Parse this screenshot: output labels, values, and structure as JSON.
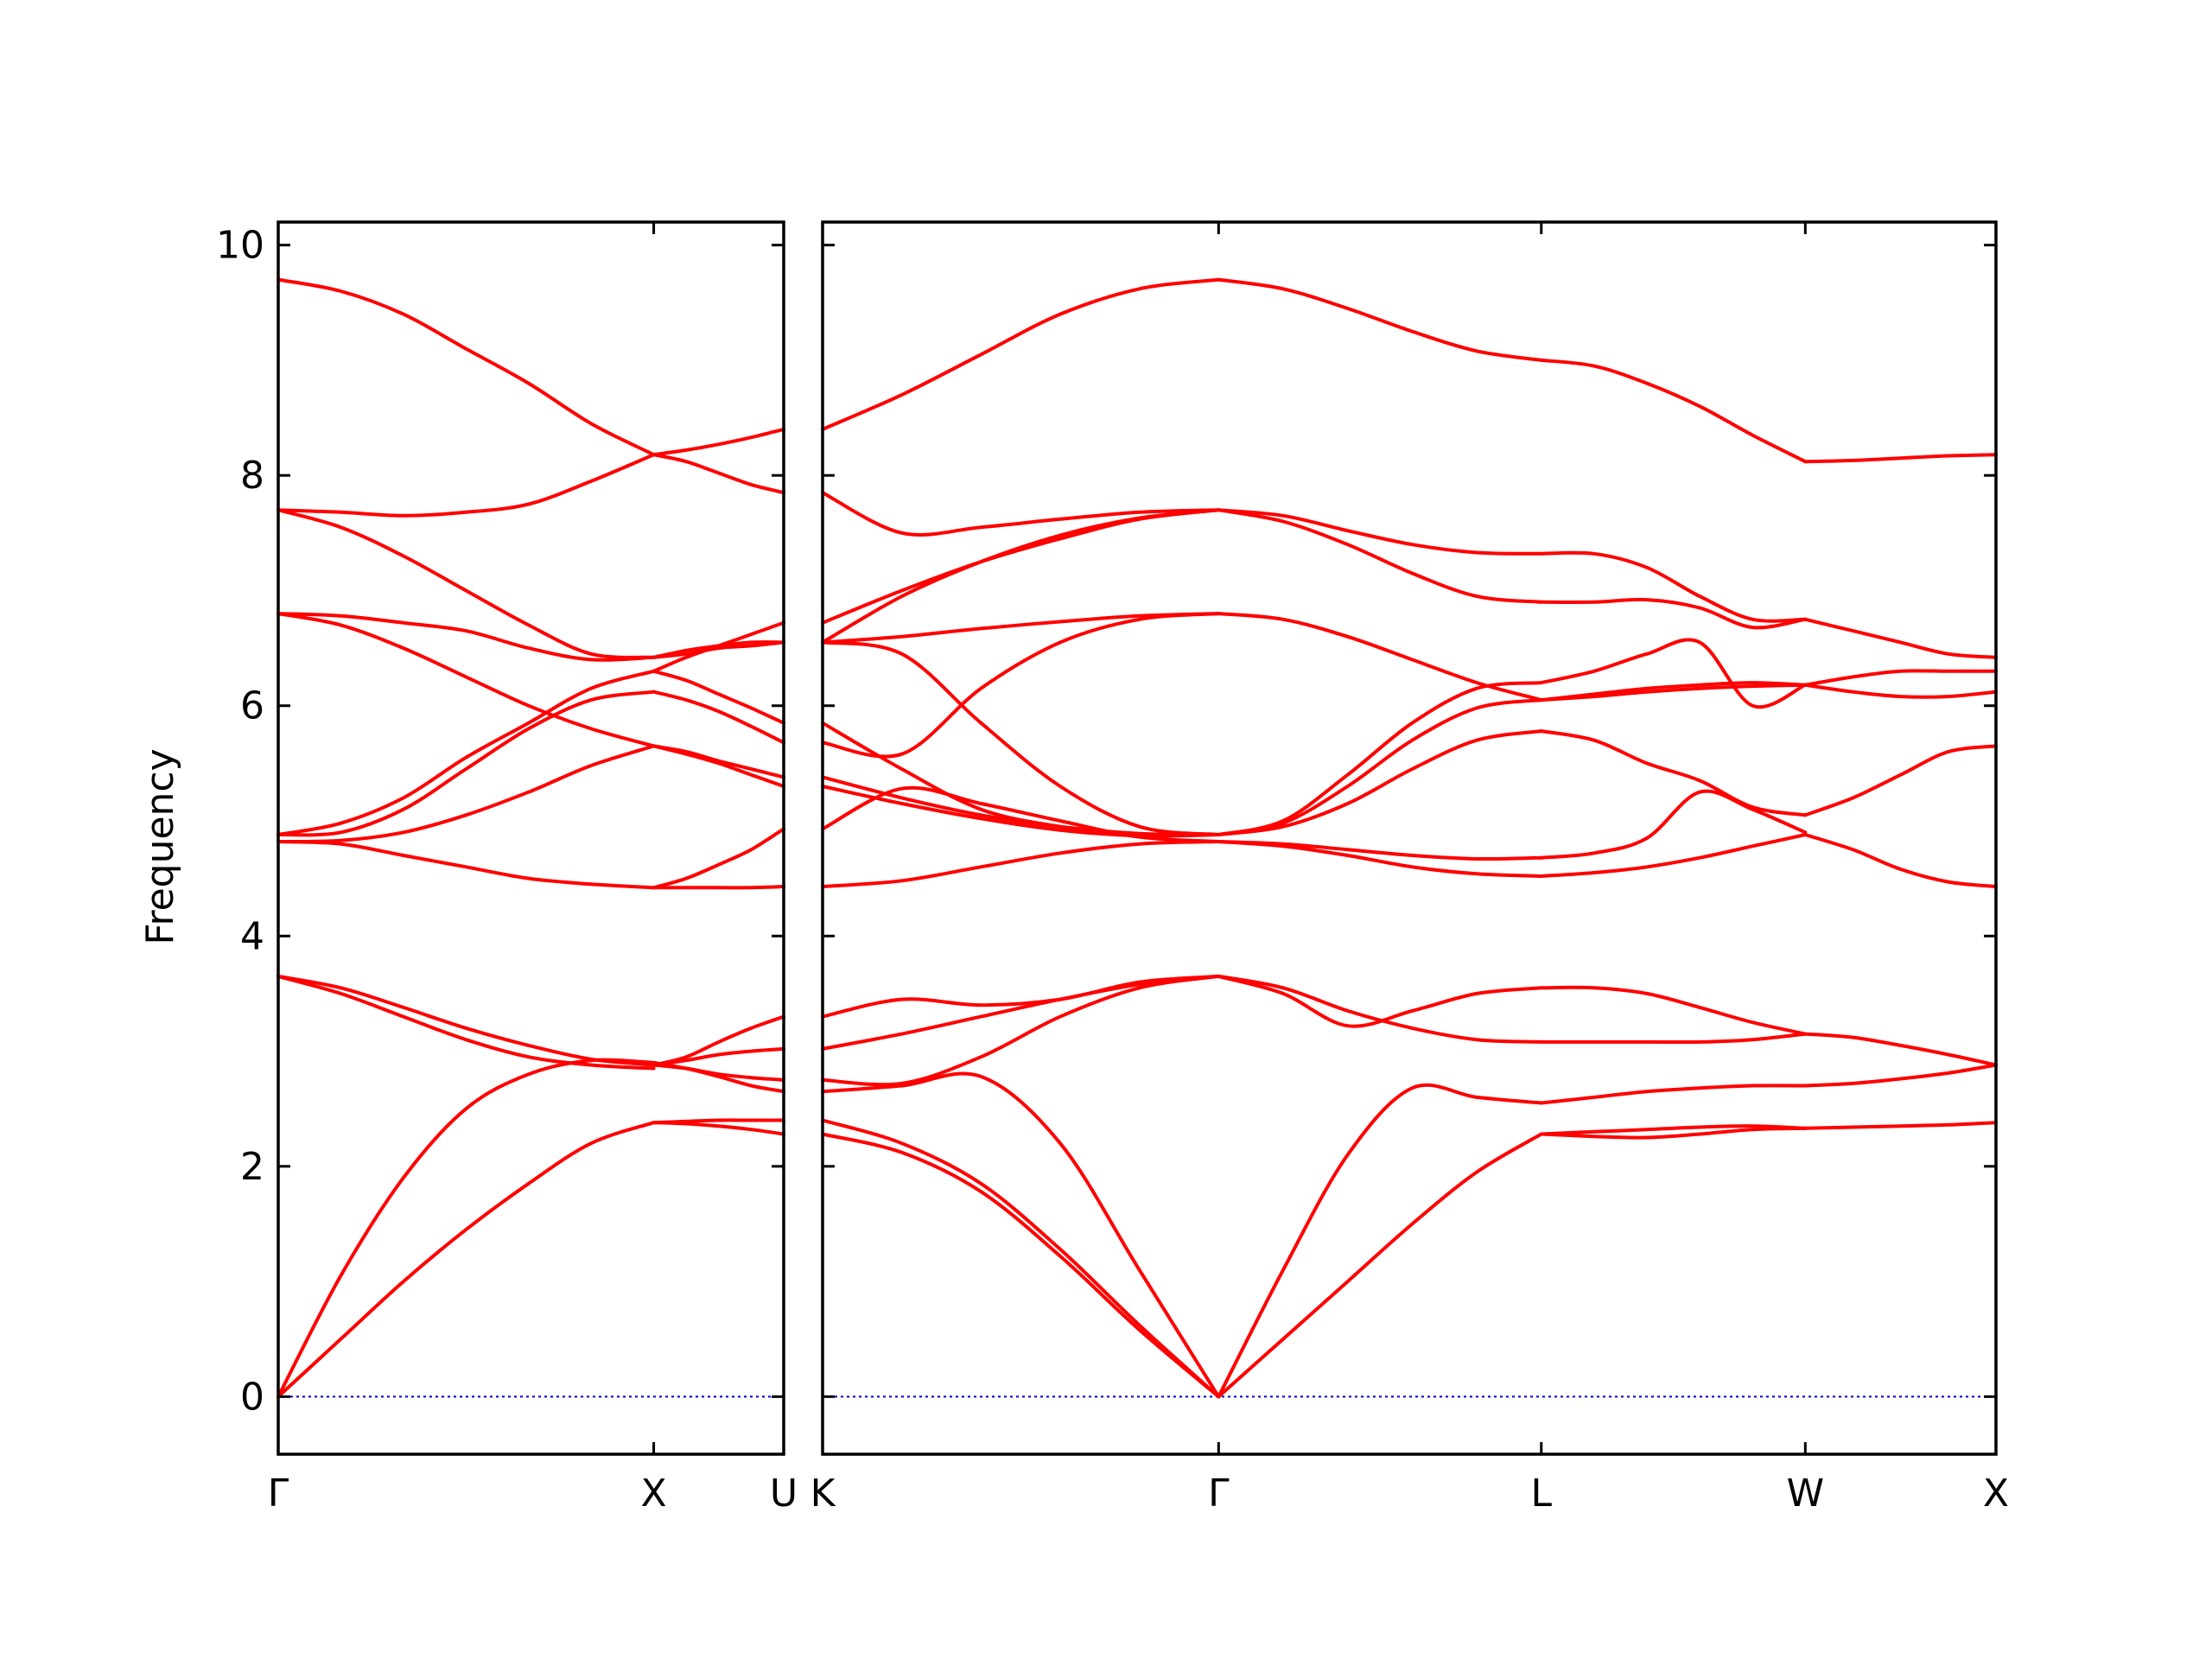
{
  "chart_data": {
    "type": "line",
    "title": "",
    "ylabel": "Frequency",
    "ylim": [
      -0.5,
      10.2
    ],
    "yticks": [
      0,
      2,
      4,
      6,
      8,
      10
    ],
    "line_color": "#ff0000",
    "zero_line_color": "#0000cc",
    "panels": [
      {
        "name": "left",
        "x_range": [
          0,
          1.75
        ],
        "ticks": [
          {
            "x": 0,
            "label": "Γ"
          },
          {
            "x": 1.3,
            "label": "X"
          },
          {
            "x": 1.75,
            "label": "U"
          }
        ],
        "segments": [
          {
            "x": [
              0,
              1.3
            ],
            "bands": [
              [
                0,
                0.5,
                1.0,
                1.45,
                1.85,
                2.2,
                2.38
              ],
              [
                0,
                1.05,
                1.9,
                2.5,
                2.8,
                2.92,
                2.9
              ],
              [
                3.65,
                3.5,
                3.3,
                3.1,
                2.95,
                2.88,
                2.85
              ],
              [
                3.65,
                3.55,
                3.38,
                3.2,
                3.05,
                2.93,
                2.88
              ],
              [
                4.82,
                4.8,
                4.7,
                4.6,
                4.5,
                4.45,
                4.42
              ],
              [
                4.82,
                4.83,
                4.9,
                5.05,
                5.25,
                5.48,
                5.65
              ],
              [
                4.88,
                4.9,
                5.1,
                5.45,
                5.8,
                6.05,
                6.12
              ],
              [
                4.88,
                4.98,
                5.2,
                5.55,
                5.85,
                6.15,
                6.3
              ],
              [
                6.8,
                6.7,
                6.5,
                6.25,
                6.0,
                5.8,
                5.65
              ],
              [
                6.8,
                6.78,
                6.72,
                6.65,
                6.5,
                6.4,
                6.42
              ],
              [
                7.7,
                7.55,
                7.3,
                7.0,
                6.7,
                6.45,
                6.42
              ],
              [
                7.7,
                7.68,
                7.65,
                7.68,
                7.75,
                7.95,
                8.18
              ],
              [
                9.7,
                9.6,
                9.4,
                9.1,
                8.8,
                8.45,
                8.18
              ]
            ]
          },
          {
            "x": [
              1.3,
              1.75
            ],
            "bands": [
              [
                2.38,
                2.37,
                2.35,
                2.32,
                2.28
              ],
              [
                2.38,
                2.39,
                2.4,
                2.4,
                2.4
              ],
              [
                2.9,
                2.85,
                2.78,
                2.7,
                2.65
              ],
              [
                2.88,
                2.85,
                2.8,
                2.77,
                2.75
              ],
              [
                2.88,
                2.92,
                2.97,
                3.0,
                3.02
              ],
              [
                2.88,
                2.95,
                3.08,
                3.2,
                3.3
              ],
              [
                4.42,
                4.42,
                4.42,
                4.42,
                4.43
              ],
              [
                4.42,
                4.5,
                4.62,
                4.75,
                4.93
              ],
              [
                5.65,
                5.58,
                5.5,
                5.4,
                5.3
              ],
              [
                5.65,
                5.6,
                5.52,
                5.45,
                5.38
              ],
              [
                6.12,
                6.05,
                5.95,
                5.82,
                5.68
              ],
              [
                6.3,
                6.22,
                6.1,
                5.98,
                5.85
              ],
              [
                6.42,
                6.45,
                6.5,
                6.52,
                6.55
              ],
              [
                6.42,
                6.48,
                6.52,
                6.55,
                6.55
              ],
              [
                6.3,
                6.42,
                6.52,
                6.62,
                6.72
              ],
              [
                8.18,
                8.12,
                8.02,
                7.92,
                7.85
              ],
              [
                8.18,
                8.22,
                8.27,
                8.33,
                8.4
              ]
            ]
          }
        ]
      },
      {
        "name": "right",
        "x_range": [
          0,
          4.0
        ],
        "ticks": [
          {
            "x": 0,
            "label": "K"
          },
          {
            "x": 1.35,
            "label": "Γ"
          },
          {
            "x": 2.45,
            "label": "L"
          },
          {
            "x": 3.35,
            "label": "W"
          },
          {
            "x": 4.0,
            "label": "X"
          }
        ],
        "segments": [
          {
            "x": [
              0,
              1.35
            ],
            "bands": [
              [
                2.28,
                2.12,
                1.78,
                1.22,
                0.58,
                0
              ],
              [
                2.4,
                2.2,
                1.85,
                1.28,
                0.62,
                0
              ],
              [
                2.65,
                2.7,
                2.78,
                2.2,
                1.1,
                0
              ],
              [
                2.75,
                2.72,
                2.95,
                3.3,
                3.55,
                3.65
              ],
              [
                3.02,
                3.15,
                3.3,
                3.45,
                3.58,
                3.65
              ],
              [
                3.3,
                3.45,
                3.4,
                3.45,
                3.6,
                3.65
              ],
              [
                4.43,
                4.48,
                4.6,
                4.72,
                4.8,
                4.82
              ],
              [
                4.93,
                5.28,
                5.15,
                5.0,
                4.86,
                4.82
              ],
              [
                5.3,
                5.15,
                5.02,
                4.92,
                4.87,
                4.88
              ],
              [
                5.38,
                5.2,
                5.05,
                4.95,
                4.89,
                4.88
              ],
              [
                5.68,
                5.58,
                6.15,
                6.55,
                6.75,
                6.8
              ],
              [
                5.85,
                5.45,
                5.1,
                4.95,
                4.88,
                4.88
              ],
              [
                6.55,
                6.45,
                5.85,
                5.3,
                4.95,
                4.88
              ],
              [
                6.55,
                6.6,
                6.67,
                6.73,
                6.78,
                6.8
              ],
              [
                6.72,
                7.0,
                7.25,
                7.45,
                7.62,
                7.7
              ],
              [
                6.55,
                6.95,
                7.25,
                7.48,
                7.63,
                7.7
              ],
              [
                7.85,
                7.5,
                7.55,
                7.62,
                7.68,
                7.7
              ],
              [
                8.4,
                8.7,
                9.05,
                9.4,
                9.62,
                9.7
              ]
            ]
          },
          {
            "x": [
              1.35,
              2.45
            ],
            "bands": [
              [
                0,
                0.5,
                1.0,
                1.5,
                1.95,
                2.28
              ],
              [
                0,
                1.1,
                2.1,
                2.68,
                2.6,
                2.55
              ],
              [
                3.65,
                3.55,
                3.35,
                3.2,
                3.1,
                3.08
              ],
              [
                3.65,
                3.5,
                3.22,
                3.35,
                3.5,
                3.55
              ],
              [
                4.82,
                4.8,
                4.75,
                4.7,
                4.67,
                4.68
              ],
              [
                4.82,
                4.78,
                4.7,
                4.6,
                4.54,
                4.52
              ],
              [
                4.88,
                4.95,
                5.15,
                5.45,
                5.7,
                5.78
              ],
              [
                4.88,
                4.98,
                5.3,
                5.7,
                5.98,
                6.05
              ],
              [
                4.88,
                5.0,
                5.4,
                5.85,
                6.15,
                6.2
              ],
              [
                6.8,
                6.75,
                6.6,
                6.4,
                6.2,
                6.05
              ],
              [
                7.7,
                7.6,
                7.4,
                7.15,
                6.95,
                6.9
              ],
              [
                7.7,
                7.65,
                7.52,
                7.4,
                7.33,
                7.32
              ],
              [
                9.7,
                9.62,
                9.45,
                9.25,
                9.08,
                9.0
              ]
            ]
          },
          {
            "x": [
              2.45,
              3.35
            ],
            "bands": [
              [
                2.28,
                2.26,
                2.25,
                2.28,
                2.32,
                2.33
              ],
              [
                2.28,
                2.3,
                2.32,
                2.34,
                2.35,
                2.33
              ],
              [
                2.55,
                2.6,
                2.65,
                2.68,
                2.7,
                2.7
              ],
              [
                3.08,
                3.08,
                3.08,
                3.08,
                3.1,
                3.15
              ],
              [
                3.55,
                3.55,
                3.5,
                3.38,
                3.25,
                3.15
              ],
              [
                4.52,
                4.55,
                4.6,
                4.68,
                4.78,
                4.88
              ],
              [
                4.68,
                4.72,
                4.85,
                5.25,
                5.1,
                4.9
              ],
              [
                5.78,
                5.7,
                5.5,
                5.35,
                5.12,
                5.05
              ],
              [
                6.05,
                6.1,
                6.15,
                6.18,
                6.2,
                6.18
              ],
              [
                6.2,
                6.3,
                6.45,
                6.55,
                6.0,
                6.18
              ],
              [
                6.05,
                6.08,
                6.12,
                6.15,
                6.17,
                6.18
              ],
              [
                6.9,
                6.9,
                6.92,
                6.85,
                6.68,
                6.75
              ],
              [
                7.32,
                7.32,
                7.2,
                6.95,
                6.75,
                6.75
              ],
              [
                9.0,
                8.95,
                8.8,
                8.6,
                8.35,
                8.12
              ]
            ]
          },
          {
            "x": [
              3.35,
              4.0
            ],
            "bands": [
              [
                2.33,
                2.34,
                2.35,
                2.36,
                2.38
              ],
              [
                2.7,
                2.72,
                2.76,
                2.81,
                2.88
              ],
              [
                3.15,
                3.12,
                3.05,
                2.97,
                2.88
              ],
              [
                4.88,
                4.75,
                4.58,
                4.47,
                4.43
              ],
              [
                5.05,
                5.2,
                5.4,
                5.6,
                5.65
              ],
              [
                6.18,
                6.12,
                6.08,
                6.08,
                6.12
              ],
              [
                6.18,
                6.25,
                6.3,
                6.3,
                6.3
              ],
              [
                6.75,
                6.65,
                6.55,
                6.45,
                6.42
              ],
              [
                8.12,
                8.13,
                8.15,
                8.17,
                8.18
              ]
            ]
          }
        ]
      }
    ]
  }
}
